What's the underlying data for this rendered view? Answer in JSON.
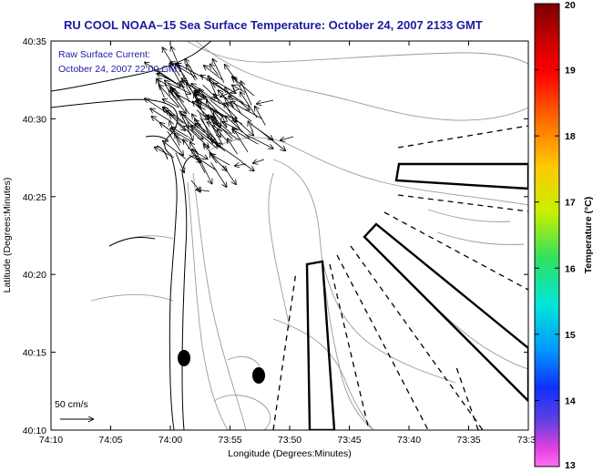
{
  "title": "RU COOL  NOAA–15  Sea Surface Temperature:  October 24, 2007 2133 GMT",
  "annotation": {
    "line1": "Raw Surface Current:",
    "line2": "October 24, 2007 22:00 GMT",
    "scale_label": "50 cm/s"
  },
  "axes": {
    "xlabel": "Longitude (Degrees:Minutes)",
    "ylabel": "Latitude (Degrees:Minutes)",
    "xticks": [
      "74:10",
      "74:05",
      "74:00",
      "73:55",
      "73:50",
      "73:45",
      "73:40",
      "73:35",
      "73:3"
    ],
    "yticks": [
      "40:35",
      "40:30",
      "40:25",
      "40:20",
      "40:15",
      "40:10"
    ]
  },
  "colorbar": {
    "label": "Temperature (°C)",
    "ticks": [
      "20",
      "19",
      "18",
      "17",
      "16",
      "15",
      "14",
      "13"
    ],
    "range": [
      13,
      20
    ]
  },
  "colors": {
    "title": "#1a1aa0",
    "coast": "#000000",
    "bathymetry": "#9a9a9a",
    "zones": "#000000"
  }
}
